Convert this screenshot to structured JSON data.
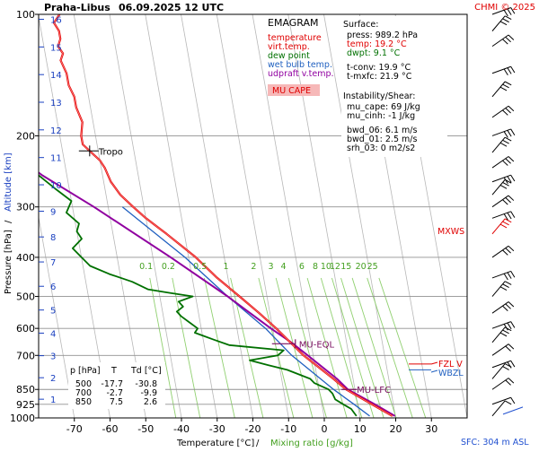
{
  "header": {
    "station": "Praha-Libus",
    "datetime": "06.09.2025 12 UTC",
    "copyright": "CHMI © 2025"
  },
  "legend": {
    "title": "EMAGRAM",
    "items": [
      {
        "label": "temperature",
        "color": "#e00000"
      },
      {
        "label": "virt.temp.",
        "color": "#e00000"
      },
      {
        "label": "dew point",
        "color": "#007000"
      },
      {
        "label": "wet bulb temp.",
        "color": "#2060c0"
      },
      {
        "label": "udpraft v.temp.",
        "color": "#9000a0"
      }
    ],
    "mu_cape_box": "MU CAPE"
  },
  "surface": {
    "heading": "Surface:",
    "lines": [
      {
        "text": "press: 989.2 hPa",
        "color": "#000000"
      },
      {
        "text": "temp: 19.2 °C",
        "color": "#e00000"
      },
      {
        "text": "dwpt: 9.1 °C",
        "color": "#007000"
      },
      {
        "text": "",
        "color": "#000000"
      },
      {
        "text": "t-conv: 19.9 °C",
        "color": "#000000"
      },
      {
        "text": "t-mxfc: 21.9 °C",
        "color": "#000000"
      }
    ]
  },
  "instability": {
    "heading": "Instability/Shear:",
    "lines": [
      "mu_cape: 69 J/kg",
      "mu_cinh: -1 J/kg",
      "",
      "bwd_06: 6.1 m/s",
      "bwd_01: 2.5 m/s",
      "srh_03: 0 m2/s2"
    ]
  },
  "level_table": {
    "headers": [
      "p [hPa]",
      "T",
      "Td [°C]"
    ],
    "rows": [
      [
        "500",
        "-17.7",
        "-30.8"
      ],
      [
        "700",
        "-2.7",
        "-9.9"
      ],
      [
        "850",
        "7.5",
        "2.6"
      ]
    ]
  },
  "annotations": {
    "tropo": "Tropo",
    "mu_eql": "MU-EQL",
    "mu_lfc": "MU-LFC",
    "fzl": "FZL V",
    "wbzl": "WBZL",
    "mxws": "MXWS",
    "sfc": "SFC: 304 m ASL"
  },
  "axes": {
    "xlabel_temp": "Temperature [°C]",
    "xlabel_sep": "/",
    "xlabel_mix": "Mixing ratio [g/kg]",
    "ylabel_press": "Pressure [hPa]",
    "ylabel_sep": "/",
    "ylabel_alt": "Altitude [km]"
  },
  "colors": {
    "temperature": "#e00000",
    "dewpoint": "#007000",
    "wetbulb": "#2060c0",
    "parcel": "#9000a0",
    "mixing": "#90d070",
    "isotherm": "#b8b8b8",
    "altitude": "#1a40c0"
  },
  "chart_data": {
    "type": "line",
    "title": "EMAGRAM",
    "x_unit": "°C",
    "y_unit": "hPa",
    "y_scale": "log",
    "xlim": [
      -80,
      40
    ],
    "ylim": [
      1000,
      100
    ],
    "x_ticks": [
      -70,
      -60,
      -50,
      -40,
      -30,
      -20,
      -10,
      0,
      10,
      20,
      30
    ],
    "pressure_ticks": [
      100,
      200,
      300,
      400,
      500,
      600,
      700,
      850,
      925,
      1000
    ],
    "altitude_ticks_km": [
      1,
      2,
      3,
      4,
      5,
      6,
      7,
      8,
      9,
      10,
      11,
      12,
      13,
      14,
      15,
      16
    ],
    "mixing_ratio_labels": [
      "0.1",
      "0.2",
      "0.5",
      "1",
      "2",
      "3",
      "4",
      "6",
      "8",
      "10",
      "12",
      "15",
      "20",
      "25"
    ],
    "mixing_ratio_values": [
      0.1,
      0.2,
      0.5,
      1,
      2,
      3,
      4,
      6,
      8,
      10,
      12,
      15,
      20,
      25
    ],
    "series": [
      {
        "name": "temperature",
        "points": [
          [
            989.2,
            19.2
          ],
          [
            925,
            14
          ],
          [
            850,
            7.5
          ],
          [
            800,
            4.5
          ],
          [
            700,
            -2.7
          ],
          [
            600,
            -9
          ],
          [
            550,
            -13
          ],
          [
            500,
            -17.7
          ],
          [
            450,
            -23
          ],
          [
            400,
            -28
          ],
          [
            350,
            -35
          ],
          [
            320,
            -40
          ],
          [
            300,
            -43
          ],
          [
            280,
            -46
          ],
          [
            260,
            -48
          ],
          [
            240,
            -49
          ],
          [
            230,
            -50
          ],
          [
            220,
            -52
          ],
          [
            210,
            -54
          ],
          [
            200,
            -54
          ],
          [
            185,
            -53
          ],
          [
            170,
            -54
          ],
          [
            160,
            -54
          ],
          [
            150,
            -55
          ],
          [
            140,
            -55
          ],
          [
            130,
            -56
          ],
          [
            125,
            -55
          ],
          [
            120,
            -56
          ],
          [
            115,
            -55
          ],
          [
            110,
            -55
          ],
          [
            105,
            -56
          ],
          [
            100,
            -54
          ]
        ]
      },
      {
        "name": "dew point",
        "points": [
          [
            989.2,
            9.1
          ],
          [
            950,
            8
          ],
          [
            925,
            6
          ],
          [
            900,
            4
          ],
          [
            870,
            3.5
          ],
          [
            850,
            2.6
          ],
          [
            820,
            -1
          ],
          [
            800,
            -2
          ],
          [
            780,
            -5
          ],
          [
            760,
            -8
          ],
          [
            740,
            -13
          ],
          [
            720,
            -18
          ],
          [
            700,
            -9.9
          ],
          [
            680,
            -8
          ],
          [
            660,
            -23
          ],
          [
            640,
            -27
          ],
          [
            625,
            -30
          ],
          [
            615,
            -32
          ],
          [
            600,
            -31
          ],
          [
            580,
            -33
          ],
          [
            560,
            -35
          ],
          [
            545,
            -36
          ],
          [
            530,
            -34
          ],
          [
            515,
            -35
          ],
          [
            500,
            -30.8
          ],
          [
            490,
            -37
          ],
          [
            480,
            -43
          ],
          [
            460,
            -47
          ],
          [
            440,
            -53
          ],
          [
            420,
            -58
          ],
          [
            400,
            -60
          ],
          [
            380,
            -62
          ],
          [
            360,
            -59
          ],
          [
            345,
            -60
          ],
          [
            330,
            -59
          ],
          [
            310,
            -62
          ],
          [
            290,
            -60
          ],
          [
            270,
            -64
          ],
          [
            250,
            -68
          ],
          [
            230,
            -72
          ],
          [
            215,
            -76
          ],
          [
            200,
            -80
          ]
        ]
      },
      {
        "name": "wet bulb temp.",
        "points": [
          [
            989.2,
            12.8
          ],
          [
            925,
            9
          ],
          [
            850,
            4
          ],
          [
            700,
            -6
          ],
          [
            600,
            -12
          ],
          [
            500,
            -21
          ],
          [
            400,
            -31
          ],
          [
            350,
            -38
          ],
          [
            300,
            -46
          ]
        ]
      },
      {
        "name": "udpraft v.temp.",
        "points": [
          [
            989.2,
            19.9
          ],
          [
            925,
            14.8
          ],
          [
            850,
            8
          ],
          [
            800,
            5.5
          ],
          [
            700,
            -1.5
          ],
          [
            650,
            -5.5
          ],
          [
            600,
            -10.5
          ],
          [
            500,
            -21
          ],
          [
            400,
            -35
          ],
          [
            300,
            -54
          ],
          [
            250,
            -67
          ],
          [
            200,
            -80
          ]
        ]
      }
    ],
    "levels": [
      {
        "name": "Tropo",
        "pressure": 218
      },
      {
        "name": "MU-EQL",
        "pressure": 655
      },
      {
        "name": "MU-LFC",
        "pressure": 850
      }
    ],
    "wind_barbs_hpa": [
      989,
      925,
      850,
      800,
      750,
      700,
      650,
      600,
      550,
      500,
      450,
      400,
      350,
      320,
      300,
      280,
      260,
      240,
      220,
      200,
      180,
      160,
      140,
      120,
      110,
      100
    ]
  }
}
